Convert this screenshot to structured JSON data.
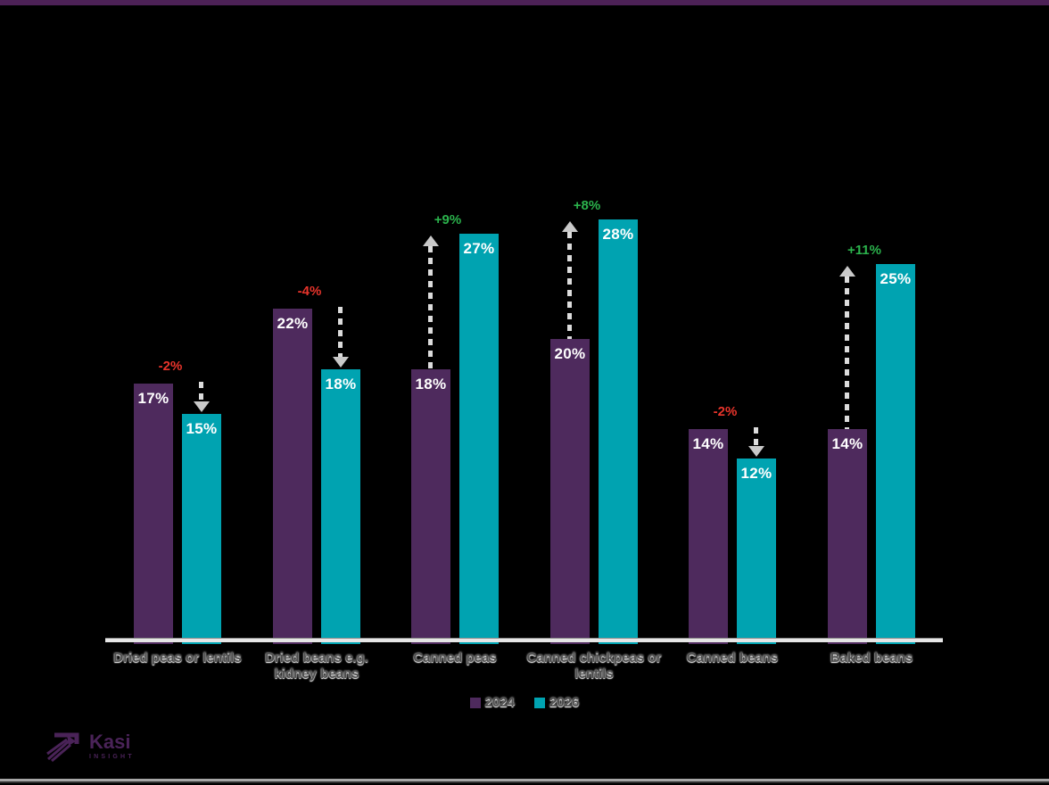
{
  "page": {
    "background": "#000000",
    "top_bar_color": "#4c2156"
  },
  "chart_data": {
    "type": "bar",
    "categories": [
      "Dried peas or lentils",
      "Dried beans e.g. kidney beans",
      "Canned peas",
      "Canned chickpeas or lentils",
      "Canned beans",
      "Baked beans"
    ],
    "series": [
      {
        "name": "2024",
        "color": "#4e2a5d",
        "values": [
          17,
          22,
          18,
          20,
          14,
          14
        ]
      },
      {
        "name": "2026",
        "color": "#00a3b1",
        "values": [
          15,
          18,
          27,
          28,
          12,
          25
        ]
      }
    ],
    "changes": [
      {
        "label": "-2%",
        "direction": "down"
      },
      {
        "label": "-4%",
        "direction": "down"
      },
      {
        "label": "+9%",
        "direction": "up"
      },
      {
        "label": "+8%",
        "direction": "up"
      },
      {
        "label": "-2%",
        "direction": "down"
      },
      {
        "label": "+11%",
        "direction": "up"
      }
    ],
    "value_suffix": "%",
    "colors": {
      "increase": "#2bb24c",
      "decrease": "#e8342b",
      "arrow": "#d4d4d4"
    },
    "ylim": [
      0,
      30
    ],
    "grid": false,
    "legend_position": "bottom",
    "legend": [
      "2024",
      "2026"
    ],
    "title": "",
    "xlabel": "",
    "ylabel": ""
  },
  "legend": {
    "items": [
      {
        "label": "2024",
        "color": "#4e2a5d"
      },
      {
        "label": "2026",
        "color": "#00a3b1"
      }
    ]
  },
  "logo": {
    "name": "Kasi",
    "subtext": "INSIGHT",
    "color": "#4a2358"
  }
}
